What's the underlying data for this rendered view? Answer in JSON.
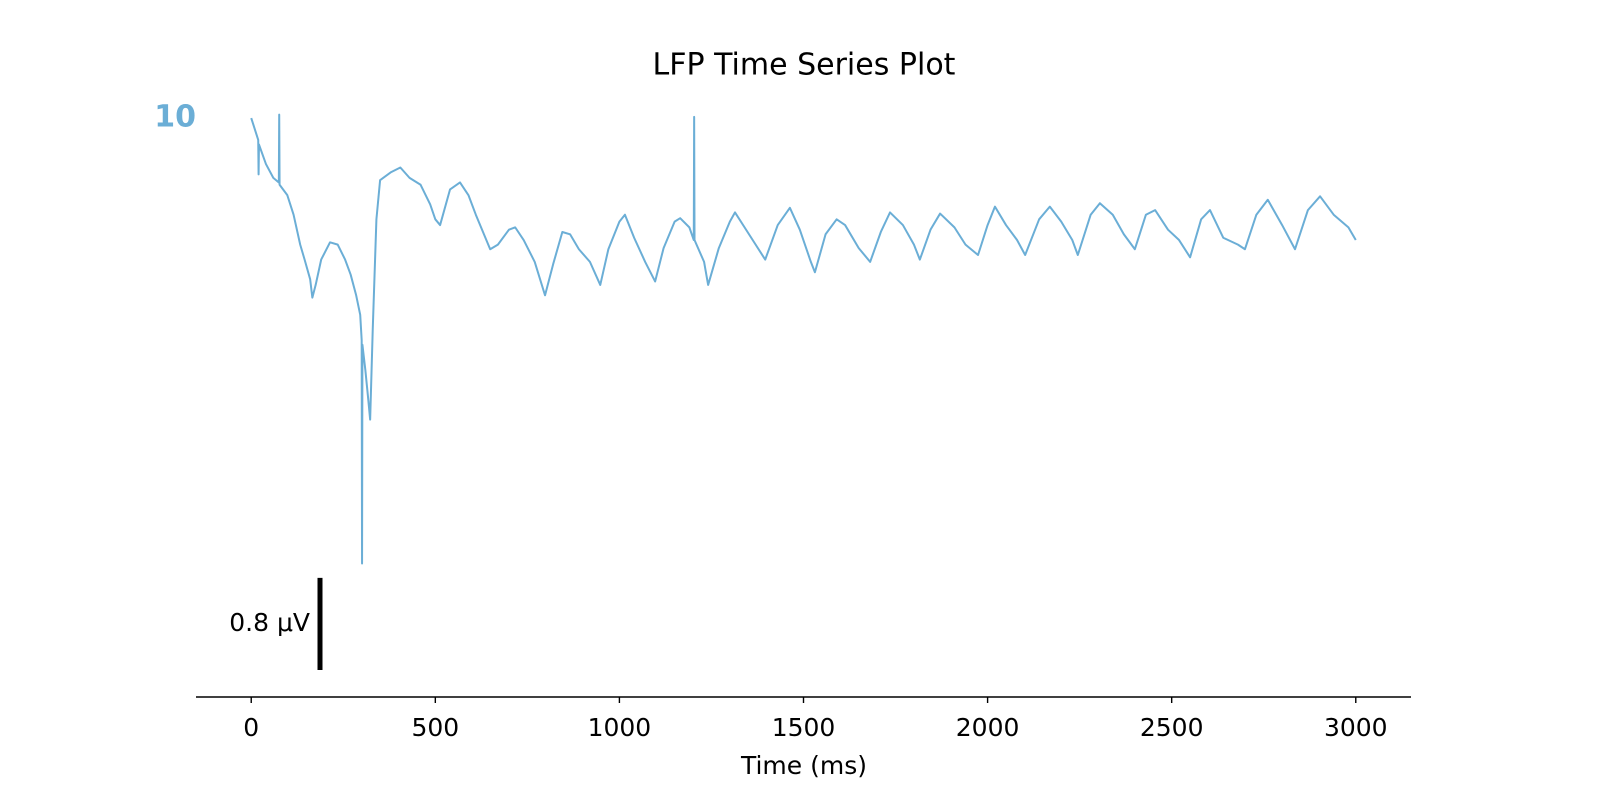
{
  "chart_data": {
    "type": "line",
    "title": "LFP Time Series Plot",
    "x_label": "Time (ms)",
    "x": [
      0,
      19,
      20,
      21,
      40,
      60,
      75,
      76,
      77,
      98,
      115,
      133,
      145,
      160,
      166,
      175,
      190,
      214,
      235,
      255,
      270,
      285,
      296,
      300,
      301,
      302,
      310,
      318,
      323,
      330,
      340,
      350,
      380,
      405,
      430,
      460,
      486,
      500,
      513,
      540,
      567,
      590,
      610,
      649,
      670,
      700,
      717,
      740,
      770,
      798,
      820,
      845,
      866,
      890,
      920,
      948,
      970,
      1000,
      1015,
      1040,
      1070,
      1097,
      1120,
      1150,
      1165,
      1190,
      1202,
      1203,
      1204,
      1230,
      1241,
      1270,
      1300,
      1314,
      1340,
      1370,
      1396,
      1430,
      1463,
      1490,
      1520,
      1531,
      1560,
      1590,
      1613,
      1650,
      1681,
      1710,
      1735,
      1770,
      1800,
      1816,
      1845,
      1871,
      1910,
      1940,
      1974,
      2000,
      2020,
      2050,
      2080,
      2102,
      2140,
      2169,
      2200,
      2230,
      2245,
      2280,
      2305,
      2340,
      2370,
      2400,
      2430,
      2455,
      2490,
      2520,
      2550,
      2580,
      2604,
      2640,
      2680,
      2699,
      2730,
      2761,
      2800,
      2835,
      2870,
      2903,
      2940,
      2980,
      3000
    ],
    "series": [
      {
        "name": "10",
        "color": "#6baed6",
        "values": [
          -0.03,
          -0.22,
          -0.52,
          -0.26,
          -0.43,
          -0.55,
          -0.59,
          0,
          -0.61,
          -0.7,
          -0.87,
          -1.13,
          -1.26,
          -1.43,
          -1.59,
          -1.48,
          -1.26,
          -1.11,
          -1.13,
          -1.26,
          -1.39,
          -1.57,
          -1.74,
          -1.96,
          -3.9,
          -2.0,
          -2.22,
          -2.48,
          -2.65,
          -1.87,
          -0.91,
          -0.57,
          -0.5,
          -0.46,
          -0.55,
          -0.61,
          -0.78,
          -0.91,
          -0.96,
          -0.65,
          -0.59,
          -0.7,
          -0.87,
          -1.17,
          -1.13,
          -1.0,
          -0.98,
          -1.09,
          -1.28,
          -1.57,
          -1.3,
          -1.02,
          -1.04,
          -1.17,
          -1.28,
          -1.48,
          -1.17,
          -0.93,
          -0.87,
          -1.07,
          -1.28,
          -1.45,
          -1.16,
          -0.93,
          -0.9,
          -0.98,
          -1.09,
          -0.02,
          -1.09,
          -1.28,
          -1.48,
          -1.16,
          -0.93,
          -0.85,
          -0.98,
          -1.13,
          -1.26,
          -0.96,
          -0.81,
          -1.0,
          -1.28,
          -1.37,
          -1.04,
          -0.91,
          -0.96,
          -1.16,
          -1.28,
          -1.02,
          -0.85,
          -0.96,
          -1.13,
          -1.26,
          -1.0,
          -0.86,
          -0.98,
          -1.13,
          -1.22,
          -0.96,
          -0.8,
          -0.96,
          -1.09,
          -1.22,
          -0.91,
          -0.8,
          -0.93,
          -1.09,
          -1.22,
          -0.87,
          -0.77,
          -0.87,
          -1.04,
          -1.17,
          -0.87,
          -0.83,
          -1.0,
          -1.09,
          -1.24,
          -0.91,
          -0.83,
          -1.07,
          -1.13,
          -1.17,
          -0.87,
          -0.74,
          -0.96,
          -1.17,
          -0.83,
          -0.71,
          -0.87,
          -0.98,
          -1.09
        ]
      }
    ],
    "xlim": [
      -150,
      3150
    ],
    "xticks": [
      0,
      500,
      1000,
      1500,
      2000,
      2500,
      3000
    ],
    "ylim": [
      -5.06,
      0.17
    ],
    "scale_bar": {
      "value": 0.8,
      "label": "0.8 μV"
    }
  }
}
